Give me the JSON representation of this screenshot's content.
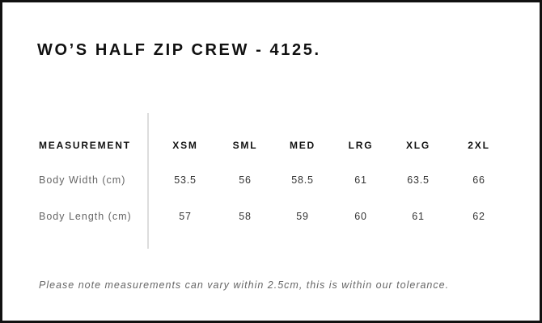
{
  "title": "WO’S HALF ZIP CREW - 4125.",
  "table": {
    "header_label": "MEASUREMENT",
    "sizes": [
      "XSM",
      "SML",
      "MED",
      "LRG",
      "XLG",
      "2XL"
    ],
    "rows": [
      {
        "label": "Body Width (cm)",
        "values": [
          "53.5",
          "56",
          "58.5",
          "61",
          "63.5",
          "66"
        ]
      },
      {
        "label": "Body Length (cm)",
        "values": [
          "57",
          "58",
          "59",
          "60",
          "61",
          "62"
        ]
      }
    ]
  },
  "note": "Please note measurements can vary within 2.5cm, this is within our tolerance."
}
